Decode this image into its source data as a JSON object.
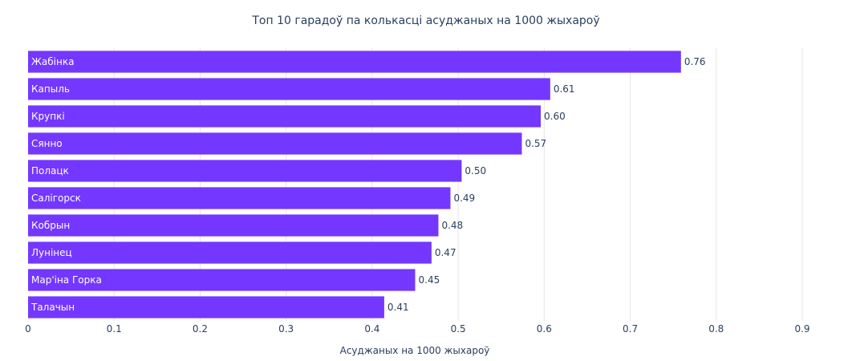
{
  "chart_data": {
    "type": "bar",
    "orientation": "horizontal",
    "title": "Топ 10 гарадоў па колькасці асуджаных на 1000 жыхароў",
    "xlabel": "Асуджаных на 1000 жыхароў",
    "ylabel": "",
    "xlim": [
      0,
      0.9
    ],
    "xticks": [
      "0",
      "0.1",
      "0.2",
      "0.3",
      "0.4",
      "0.5",
      "0.6",
      "0.7",
      "0.8",
      "0.9"
    ],
    "grid": true,
    "bar_color": "#7437ff",
    "categories": [
      "Жабінка",
      "Капыль",
      "Крупкі",
      "Сянно",
      "Полацк",
      "Салігорск",
      "Кобрын",
      "Лунінец",
      "Мар'іна Горка",
      "Талачын"
    ],
    "values": [
      0.759,
      0.607,
      0.596,
      0.574,
      0.504,
      0.491,
      0.477,
      0.469,
      0.45,
      0.414
    ],
    "value_labels": [
      "0.76",
      "0.61",
      "0.60",
      "0.57",
      "0.50",
      "0.49",
      "0.48",
      "0.47",
      "0.45",
      "0.41"
    ]
  }
}
